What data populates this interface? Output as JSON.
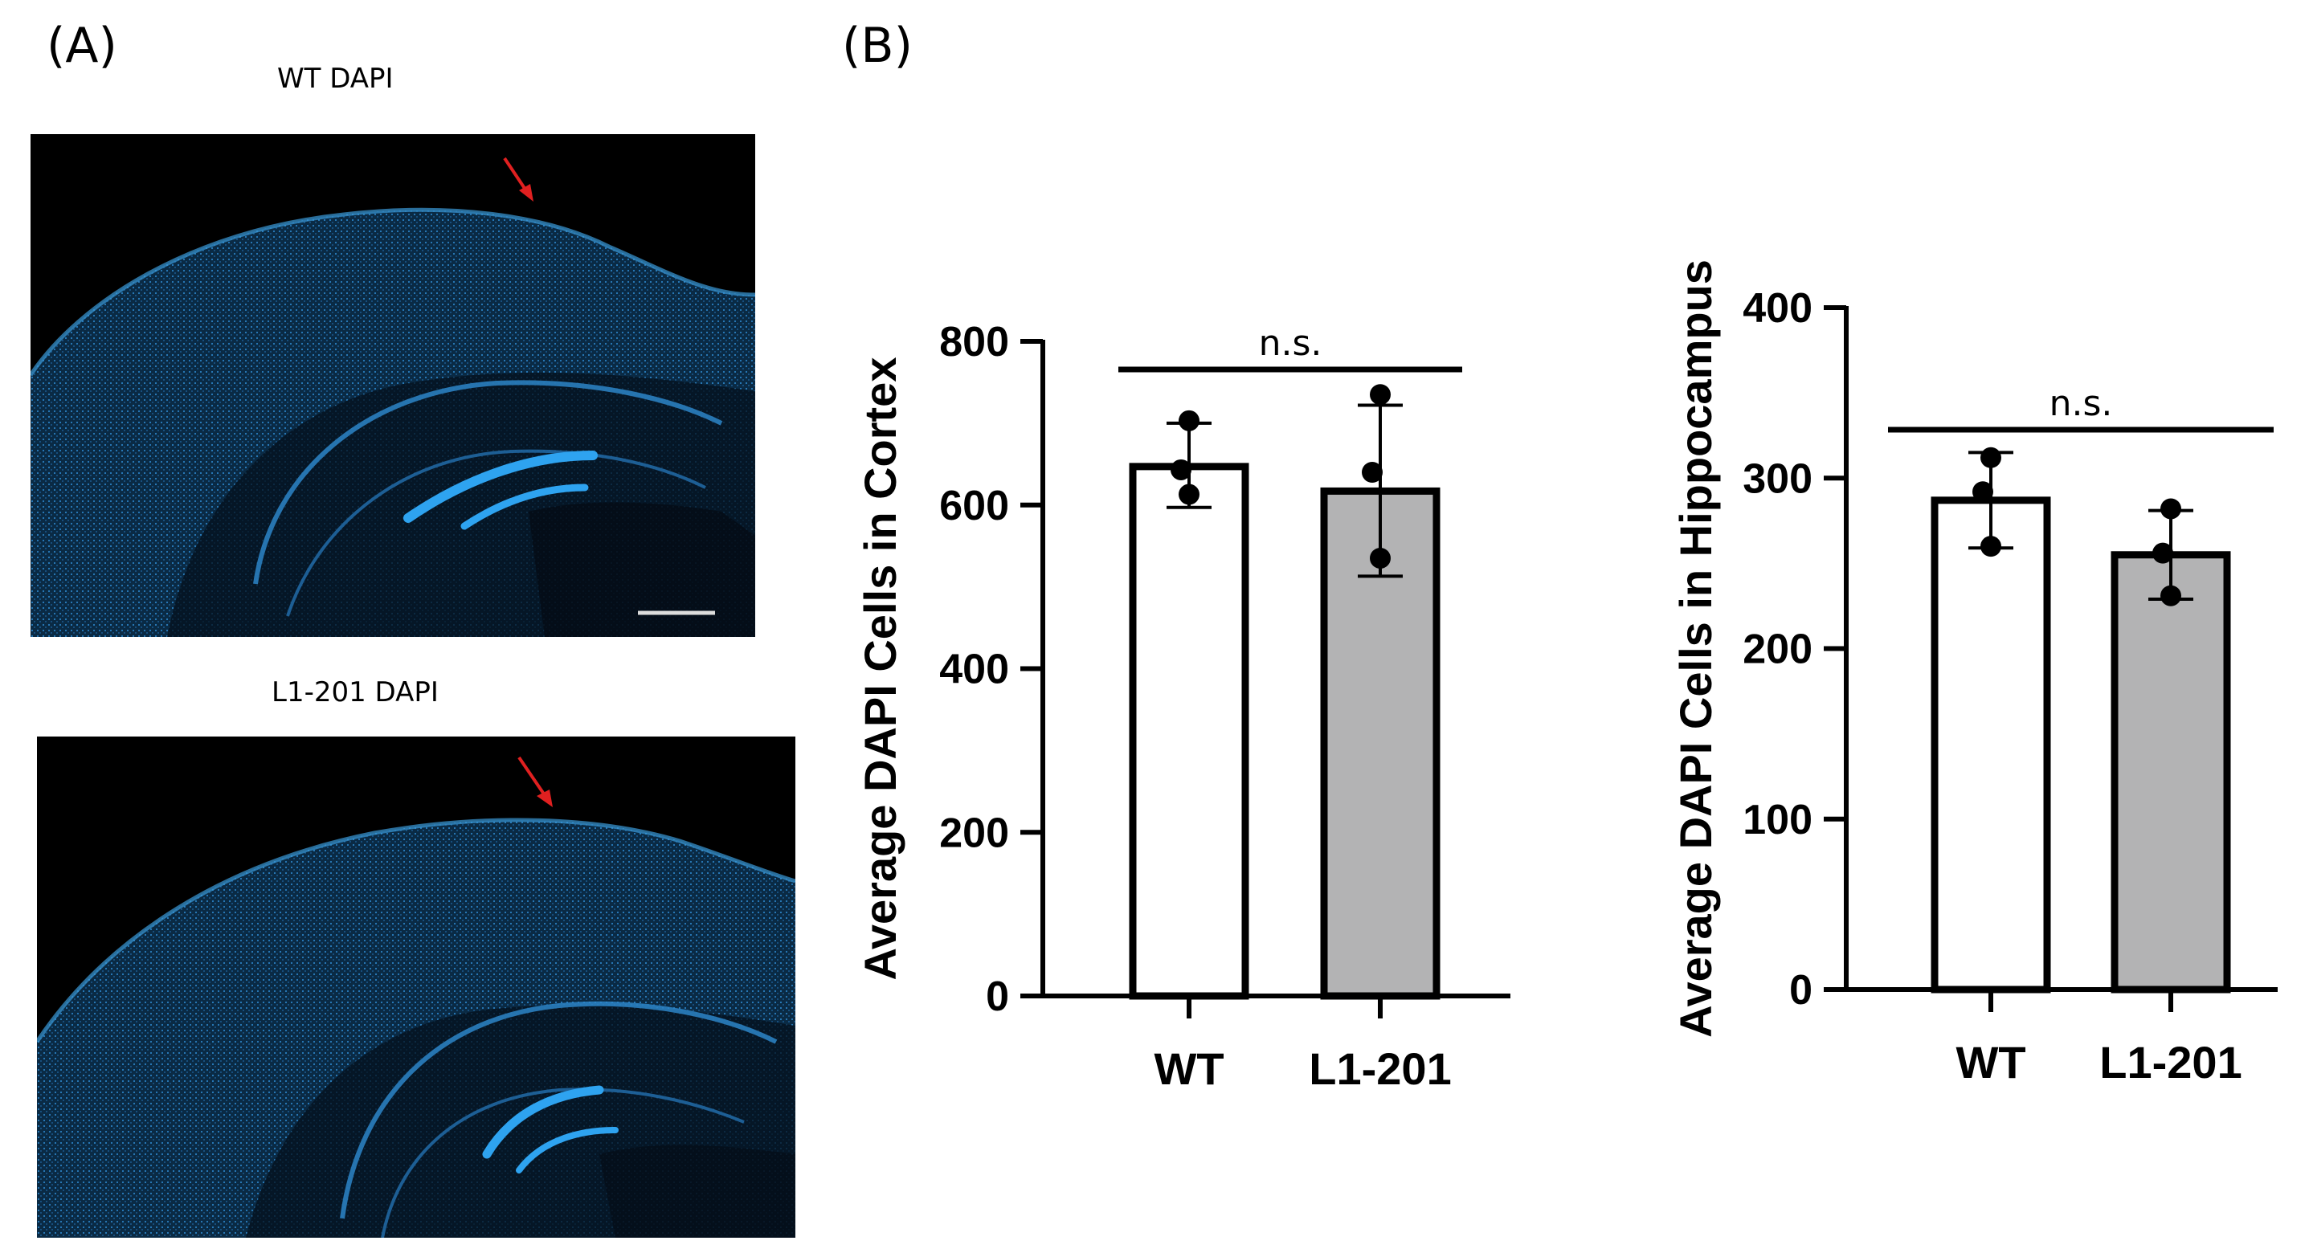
{
  "panels": {
    "a_label": "(A)",
    "b_label": "(B)",
    "wt_image_title": "WT DAPI",
    "l1_image_title": "L1-201 DAPI"
  },
  "colors": {
    "dapi": "#1e8fd8",
    "arrow": "#e02020",
    "bar_wt": "#ffffff",
    "bar_l1": "#b3b3b4",
    "ink": "#000000"
  },
  "chart_data": [
    {
      "type": "bar",
      "categories": [
        "WT",
        "L1-201"
      ],
      "values": [
        647,
        617
      ],
      "error": [
        [
          597,
          700
        ],
        [
          513,
          722
        ]
      ],
      "points": [
        [
          703,
          643,
          613
        ],
        [
          735,
          640,
          535
        ]
      ],
      "ylabel": "Average DAPI Cells in Cortex",
      "ylim": [
        0,
        800
      ],
      "yticks": [
        0,
        200,
        400,
        600,
        800
      ],
      "significance": "n.s.",
      "grid": false
    },
    {
      "type": "bar",
      "categories": [
        "WT",
        "L1-201"
      ],
      "values": [
        287,
        255
      ],
      "error": [
        [
          259,
          315
        ],
        [
          229,
          281
        ]
      ],
      "points": [
        [
          312,
          292,
          260
        ],
        [
          282,
          256,
          231
        ]
      ],
      "ylabel": "Average DAPI Cells in Hippocampus",
      "ylim": [
        0,
        400
      ],
      "yticks": [
        0,
        100,
        200,
        300,
        400
      ],
      "significance": "n.s.",
      "grid": false
    }
  ]
}
